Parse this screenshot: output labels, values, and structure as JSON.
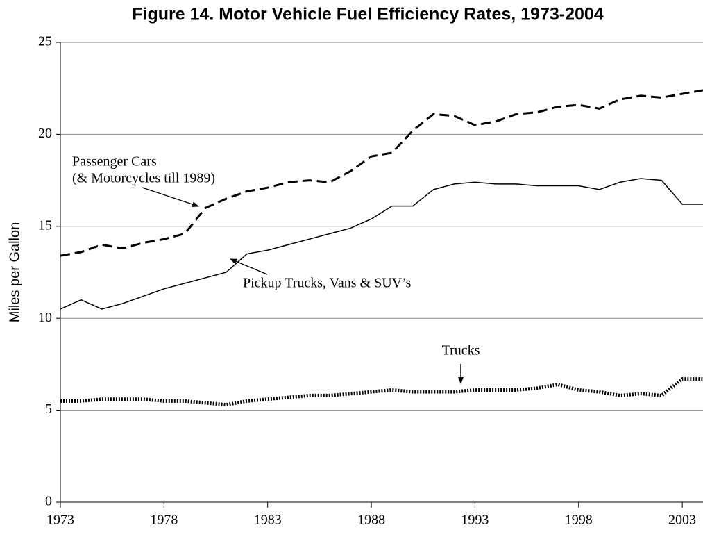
{
  "chart_data": {
    "type": "line",
    "title": "Figure 14. Motor Vehicle Fuel Efficiency Rates, 1973-2004",
    "y_label": "Miles per Gallon",
    "x": [
      1973,
      1974,
      1975,
      1976,
      1977,
      1978,
      1979,
      1980,
      1981,
      1982,
      1983,
      1984,
      1985,
      1986,
      1987,
      1988,
      1989,
      1990,
      1991,
      1992,
      1993,
      1994,
      1995,
      1996,
      1997,
      1998,
      1999,
      2000,
      2001,
      2002,
      2003,
      2004
    ],
    "series": [
      {
        "name": "Passenger Cars (& Motorcycles till 1989)",
        "color": "#000000",
        "dash": "14,7",
        "values": [
          13.4,
          13.6,
          14.0,
          13.8,
          14.1,
          14.3,
          14.6,
          16.0,
          16.5,
          16.9,
          17.1,
          17.4,
          17.5,
          17.4,
          18.0,
          18.8,
          19.0,
          20.2,
          21.1,
          21.0,
          20.5,
          20.7,
          21.1,
          21.2,
          21.5,
          21.6,
          21.4,
          21.9,
          22.1,
          22.0,
          22.2,
          22.4
        ]
      },
      {
        "name": "Pickup Trucks, Vans & SUV’s",
        "color": "#000000",
        "dash": "none",
        "values": [
          10.5,
          11.0,
          10.5,
          10.8,
          11.2,
          11.6,
          11.9,
          12.2,
          12.5,
          13.5,
          13.7,
          14.0,
          14.3,
          14.6,
          14.9,
          15.4,
          16.1,
          16.1,
          17.0,
          17.3,
          17.4,
          17.3,
          17.3,
          17.2,
          17.2,
          17.2,
          17.0,
          17.4,
          17.6,
          17.5,
          16.2,
          16.2
        ]
      },
      {
        "name": "Trucks",
        "color": "#000000",
        "dash": "2,2",
        "values": [
          5.5,
          5.5,
          5.6,
          5.6,
          5.6,
          5.5,
          5.5,
          5.4,
          5.3,
          5.5,
          5.6,
          5.7,
          5.8,
          5.8,
          5.9,
          6.0,
          6.1,
          6.0,
          6.0,
          6.0,
          6.1,
          6.1,
          6.1,
          6.2,
          6.4,
          6.1,
          6.0,
          5.8,
          5.9,
          5.8,
          6.7,
          6.7
        ]
      }
    ],
    "annotations": [
      "Passenger Cars",
      "(& Motorcycles till 1989)",
      "Pickup Trucks, Vans & SUV’s",
      "Trucks"
    ],
    "xlim": [
      1973,
      2004
    ],
    "xticks": [
      1973,
      1978,
      1983,
      1988,
      1993,
      1998,
      2003
    ],
    "ylim": [
      0,
      25
    ],
    "yticks": [
      0,
      5,
      10,
      15,
      20,
      25
    ],
    "grid": true
  }
}
